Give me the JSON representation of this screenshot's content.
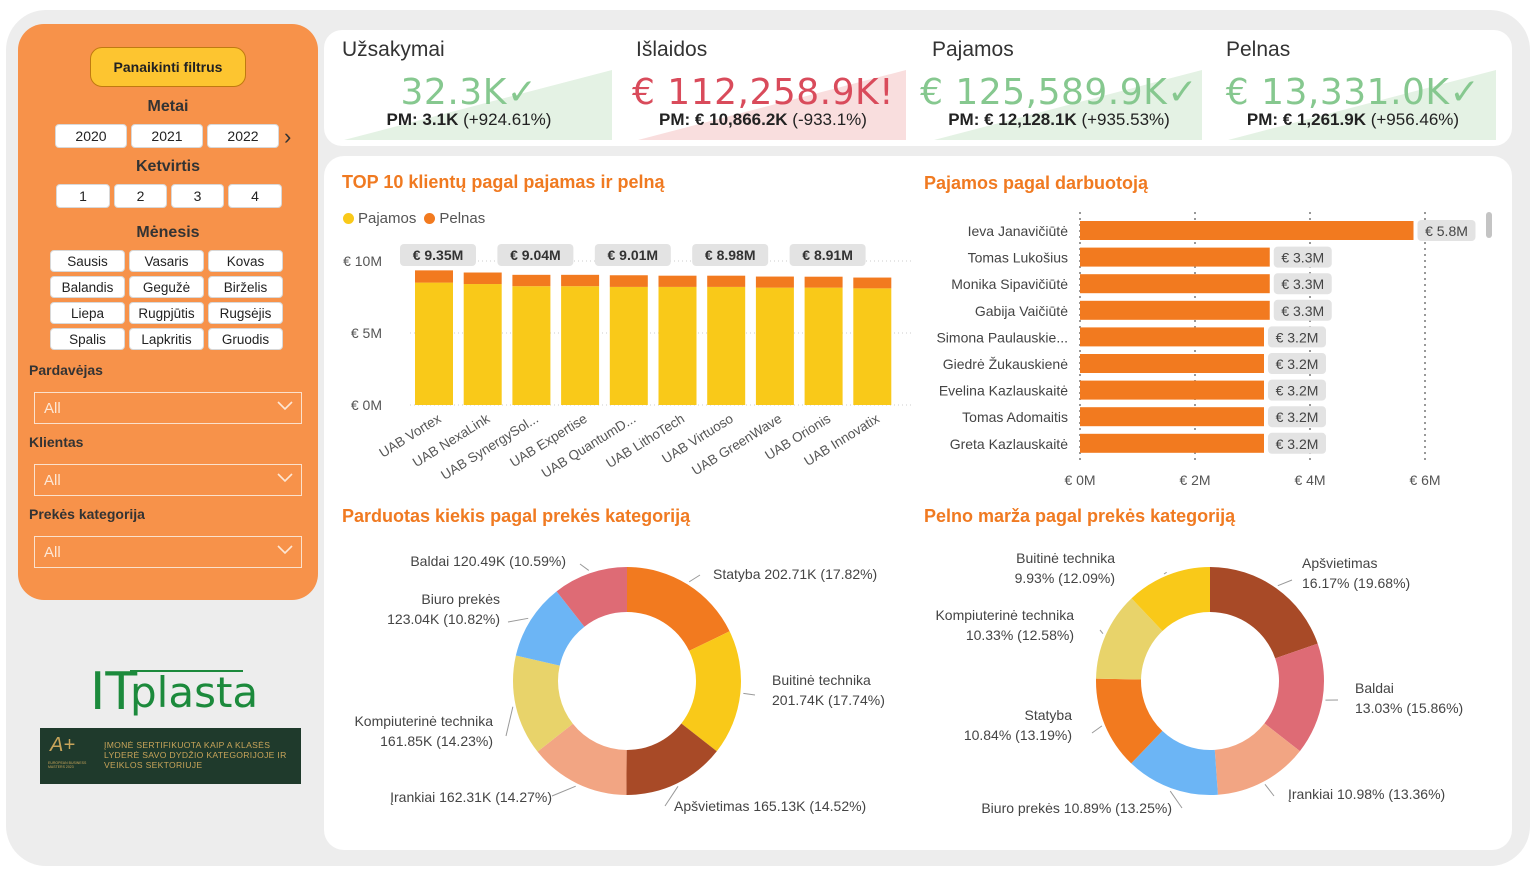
{
  "filters": {
    "clear_label": "Panaikinti filtrus",
    "year_title": "Metai",
    "years": [
      "2020",
      "2021",
      "2022"
    ],
    "quarter_title": "Ketvirtis",
    "quarters": [
      "1",
      "2",
      "3",
      "4"
    ],
    "month_title": "Mėnesis",
    "months": [
      "Sausis",
      "Vasaris",
      "Kovas",
      "Balandis",
      "Gegužė",
      "Birželis",
      "Liepa",
      "Rugpjūtis",
      "Rugsėjis",
      "Spalis",
      "Lapkritis",
      "Gruodis"
    ],
    "seller_label": "Pardavėjas",
    "seller_value": "All",
    "client_label": "Klientas",
    "client_value": "All",
    "category_label": "Prekės kategorija",
    "category_value": "All"
  },
  "logo": {
    "brand_it": "IT",
    "brand_name": "plasta",
    "cert_text": "ĮMONĖ SERTIFIKUOTA KAIP A KLASĖS LYDERĖ SAVO DYDŽIO KATEGORIJOJE IR VEIKLOS SEKTORIUJE",
    "cert_mark": "A+",
    "cert_sub": "EUROPEAN BUSINESS MASTERS 2023"
  },
  "kpis": [
    {
      "name": "Užsakymai",
      "value": "32.3K",
      "status": "✓",
      "pm_label": "PM: 3.1K",
      "pm_change": "(+924.61%)",
      "color": "#86c88f",
      "bg": "#e4f2e4"
    },
    {
      "name": "Išlaidos",
      "value": "€ 112,258.9K",
      "status": "!",
      "pm_label": "PM: € 10,866.2K",
      "pm_change": "(-933.1%)",
      "color": "#d94b5b",
      "bg": "#f9dede"
    },
    {
      "name": "Pajamos",
      "value": "€ 125,589.9K",
      "status": "✓",
      "pm_label": "PM: € 12,128.1K",
      "pm_change": "(+935.53%)",
      "color": "#86c88f",
      "bg": "#e4f2e4"
    },
    {
      "name": "Pelnas",
      "value": "€ 13,331.0K",
      "status": "✓",
      "pm_label": "PM: € 1,261.9K",
      "pm_change": "(+956.46%)",
      "color": "#86c88f",
      "bg": "#e4f2e4"
    }
  ],
  "charts": {
    "top_clients_title": "TOP 10 klientų pagal pajamas ir pelną",
    "employee_title": "Pajamos pagal darbuotoją",
    "qty_title": "Parduotas kiekis pagal prekės kategoriją",
    "margin_title": "Pelno marža pagal prekės kategoriją",
    "legend_revenue": "Pajamos",
    "legend_profit": "Pelnas"
  },
  "chart_data": [
    {
      "type": "bar",
      "stacked": true,
      "title": "TOP 10 klientų pagal pajamas ir pelną",
      "categories": [
        "UAB Vortex",
        "UAB NexaLink",
        "UAB SynergySol...",
        "UAB Expertise",
        "UAB QuantumD...",
        "UAB LithoTech",
        "UAB Virtuoso",
        "UAB GreenWave",
        "UAB Orionis",
        "UAB Innovatix"
      ],
      "series": [
        {
          "name": "Pajamos",
          "color": "#f9c919",
          "values": [
            8.5,
            8.4,
            8.25,
            8.25,
            8.2,
            8.2,
            8.2,
            8.15,
            8.15,
            8.1
          ]
        },
        {
          "name": "Pelnas",
          "color": "#f27a1f",
          "values": [
            0.85,
            0.8,
            0.79,
            0.79,
            0.81,
            0.78,
            0.78,
            0.77,
            0.76,
            0.75
          ]
        }
      ],
      "data_labels": [
        "€ 9.35M",
        "€ 9.04M",
        "€ 9.01M",
        "€ 8.98M",
        "€ 8.91M"
      ],
      "data_label_positions": [
        0,
        2,
        4,
        6,
        8
      ],
      "yticks": [
        "€ 0M",
        "€ 5M",
        "€ 10M"
      ],
      "ylim": [
        0,
        10
      ]
    },
    {
      "type": "bar",
      "orientation": "horizontal",
      "title": "Pajamos pagal darbuotoją",
      "categories": [
        "Ieva Janavičiūtė",
        "Tomas Lukošius",
        "Monika Sipavičiūtė",
        "Gabija Vaičiūtė",
        "Simona Paulauskie...",
        "Giedrė Žukauskienė",
        "Evelina Kazlauskaitė",
        "Tomas Adomaitis",
        "Greta Kazlauskaitė"
      ],
      "values": [
        5.8,
        3.3,
        3.3,
        3.3,
        3.2,
        3.2,
        3.2,
        3.2,
        3.2
      ],
      "labels": [
        "€ 5.8M",
        "€ 3.3M",
        "€ 3.3M",
        "€ 3.3M",
        "€ 3.2M",
        "€ 3.2M",
        "€ 3.2M",
        "€ 3.2M",
        "€ 3.2M"
      ],
      "xticks": [
        "€ 0M",
        "€ 2M",
        "€ 4M",
        "€ 6M"
      ],
      "xlim": [
        0,
        6
      ]
    },
    {
      "type": "pie",
      "donut": true,
      "title": "Parduotas kiekis pagal prekės kategoriją",
      "slices": [
        {
          "name": "Statyba",
          "value": 17.82,
          "label": "Statyba 202.71K (17.82%)",
          "color": "#f27a1f"
        },
        {
          "name": "Buitinė technika",
          "value": 17.74,
          "label1": "Buitinė technika",
          "label2": "201.74K (17.74%)",
          "color": "#f9c919"
        },
        {
          "name": "Apšvietimas",
          "value": 14.52,
          "label": "Apšvietimas 165.13K (14.52%)",
          "color": "#a84a27"
        },
        {
          "name": "Įrankiai",
          "value": 14.27,
          "label": "Įrankiai 162.31K (14.27%)",
          "color": "#f2a583"
        },
        {
          "name": "Kompiuterinė technika",
          "value": 14.23,
          "label1": "Kompiuterinė technika",
          "label2": "161.85K (14.23%)",
          "color": "#e8d36a"
        },
        {
          "name": "Biuro prekės",
          "value": 10.82,
          "label1": "Biuro prekės",
          "label2": "123.04K (10.82%)",
          "color": "#6cb5f5"
        },
        {
          "name": "Baldai",
          "value": 10.59,
          "label": "Baldai 120.49K (10.59%)",
          "color": "#de6b75"
        }
      ]
    },
    {
      "type": "pie",
      "donut": true,
      "title": "Pelno marža pagal prekės kategoriją",
      "slices": [
        {
          "name": "Apšvietimas",
          "value": 19.68,
          "label1": "Apšvietimas",
          "label2": "16.17% (19.68%)",
          "color": "#a84a27"
        },
        {
          "name": "Baldai",
          "value": 15.86,
          "label1": "Baldai",
          "label2": "13.03% (15.86%)",
          "color": "#de6b75"
        },
        {
          "name": "Įrankiai",
          "value": 13.36,
          "label": "Įrankiai 10.98% (13.36%)",
          "color": "#f2a583"
        },
        {
          "name": "Biuro prekės",
          "value": 13.25,
          "label": "Biuro prekės 10.89% (13.25%)",
          "color": "#6cb5f5"
        },
        {
          "name": "Statyba",
          "value": 13.19,
          "label1": "Statyba",
          "label2": "10.84% (13.19%)",
          "color": "#f27a1f"
        },
        {
          "name": "Kompiuterinė technika",
          "value": 12.58,
          "label1": "Kompiuterinė technika",
          "label2": "10.33% (12.58%)",
          "color": "#e8d36a"
        },
        {
          "name": "Buitinė technika",
          "value": 12.09,
          "label1": "Buitinė technika",
          "label2": "9.93% (12.09%)",
          "color": "#f9c919"
        }
      ]
    }
  ]
}
